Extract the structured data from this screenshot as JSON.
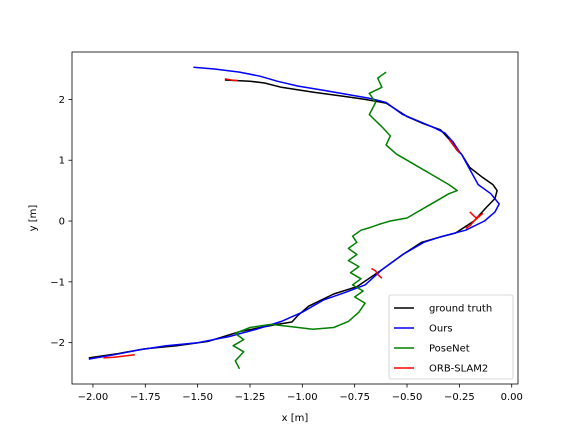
{
  "chart_data": {
    "type": "line",
    "title": "",
    "xlabel": "x [m]",
    "ylabel": "y [m]",
    "xlim": [
      -2.1,
      0.03
    ],
    "ylim": [
      -2.68,
      2.78
    ],
    "grid": false,
    "legend_position": "bottom-right",
    "x_ticks": [
      -2.0,
      -1.75,
      -1.5,
      -1.25,
      -1.0,
      -0.75,
      -0.5,
      -0.25,
      0.0
    ],
    "x_tick_labels": [
      "−2.00",
      "−1.75",
      "−1.50",
      "−1.25",
      "−1.00",
      "−0.75",
      "−0.50",
      "−0.25",
      "0.00"
    ],
    "y_ticks": [
      -2,
      -1,
      0,
      1,
      2
    ],
    "y_tick_labels": [
      "−2",
      "−1",
      "0",
      "1",
      "2"
    ],
    "series": [
      {
        "name": "ground truth",
        "color": "#000000",
        "x": [
          -1.37,
          -1.25,
          -1.18,
          -1.1,
          -0.95,
          -0.8,
          -0.7,
          -0.6,
          -0.5,
          -0.42,
          -0.34,
          -0.3,
          -0.26,
          -0.24,
          -0.2,
          -0.14,
          -0.09,
          -0.07,
          -0.08,
          -0.12,
          -0.18,
          -0.27,
          -0.35,
          -0.43,
          -0.52,
          -0.62,
          -0.74,
          -0.85,
          -0.97,
          -1.02,
          -1.05,
          -1.12,
          -1.2,
          -1.3,
          -1.45,
          -1.6,
          -1.75,
          -1.88,
          -2.02
        ],
        "y": [
          2.32,
          2.3,
          2.27,
          2.2,
          2.12,
          2.05,
          2.0,
          1.94,
          1.72,
          1.6,
          1.5,
          1.35,
          1.16,
          1.1,
          0.88,
          0.72,
          0.6,
          0.5,
          0.37,
          0.23,
          0.0,
          -0.2,
          -0.27,
          -0.35,
          -0.55,
          -0.8,
          -1.08,
          -1.2,
          -1.4,
          -1.55,
          -1.66,
          -1.7,
          -1.75,
          -1.82,
          -1.98,
          -2.05,
          -2.1,
          -2.18,
          -2.25
        ]
      },
      {
        "name": "Ours",
        "color": "#0000ff",
        "x": [
          -1.52,
          -1.42,
          -1.3,
          -1.2,
          -1.12,
          -1.02,
          -0.9,
          -0.78,
          -0.68,
          -0.6,
          -0.52,
          -0.45,
          -0.38,
          -0.32,
          -0.28,
          -0.25,
          -0.24,
          -0.2,
          -0.16,
          -0.1,
          -0.06,
          -0.08,
          -0.13,
          -0.22,
          -0.33,
          -0.42,
          -0.52,
          -0.62,
          -0.7,
          -0.8,
          -0.9,
          -1.0,
          -1.1,
          -1.22,
          -1.35,
          -1.5,
          -1.65,
          -1.78,
          -1.9,
          -2.02
        ],
        "y": [
          2.53,
          2.5,
          2.45,
          2.38,
          2.3,
          2.22,
          2.15,
          2.08,
          2.02,
          1.95,
          1.75,
          1.65,
          1.55,
          1.45,
          1.3,
          1.14,
          1.1,
          0.85,
          0.6,
          0.45,
          0.28,
          0.15,
          0.0,
          -0.15,
          -0.25,
          -0.35,
          -0.55,
          -0.8,
          -1.05,
          -1.18,
          -1.3,
          -1.5,
          -1.65,
          -1.78,
          -1.9,
          -2.0,
          -2.05,
          -2.12,
          -2.2,
          -2.27
        ]
      },
      {
        "name": "PoseNet",
        "color": "#008000",
        "x": [
          -0.6,
          -0.64,
          -0.62,
          -0.68,
          -0.65,
          -0.68,
          -0.62,
          -0.58,
          -0.6,
          -0.55,
          -0.5,
          -0.45,
          -0.4,
          -0.35,
          -0.3,
          -0.26,
          -0.3,
          -0.35,
          -0.4,
          -0.45,
          -0.5,
          -0.58,
          -0.63,
          -0.67,
          -0.72,
          -0.76,
          -0.74,
          -0.78,
          -0.74,
          -0.78,
          -0.73,
          -0.77,
          -0.72,
          -0.76,
          -0.71,
          -0.75,
          -0.7,
          -0.73,
          -0.78,
          -0.85,
          -0.95,
          -1.05,
          -1.15,
          -1.25,
          -1.32,
          -1.28,
          -1.33,
          -1.28,
          -1.32,
          -1.3
        ],
        "y": [
          2.45,
          2.35,
          2.2,
          2.1,
          1.95,
          1.75,
          1.55,
          1.4,
          1.25,
          1.1,
          1.0,
          0.9,
          0.8,
          0.7,
          0.6,
          0.5,
          0.45,
          0.35,
          0.25,
          0.15,
          0.05,
          0.0,
          -0.05,
          -0.1,
          -0.15,
          -0.25,
          -0.35,
          -0.45,
          -0.55,
          -0.65,
          -0.75,
          -0.85,
          -0.95,
          -1.05,
          -1.15,
          -1.25,
          -1.35,
          -1.5,
          -1.65,
          -1.75,
          -1.78,
          -1.74,
          -1.7,
          -1.75,
          -1.85,
          -1.95,
          -2.05,
          -2.15,
          -2.3,
          -2.43
        ]
      },
      {
        "name": "ORB-SLAM2",
        "color": "#ff0000",
        "x": [
          -1.37,
          -1.34,
          -1.31,
          -0.3,
          -0.28,
          -0.26,
          -0.25,
          -0.2,
          -0.17,
          -0.14,
          -0.18,
          -0.2,
          -0.22,
          -0.67,
          -0.65,
          -0.64,
          -0.62,
          -1.8,
          -1.85,
          -1.9,
          -1.95
        ],
        "y": [
          2.34,
          2.32,
          2.31,
          1.35,
          1.25,
          1.17,
          1.12,
          0.15,
          0.05,
          0.12,
          0.0,
          -0.08,
          -0.12,
          -0.78,
          -0.82,
          -0.88,
          -0.94,
          -2.2,
          -2.22,
          -2.24,
          -2.25
        ]
      }
    ]
  }
}
